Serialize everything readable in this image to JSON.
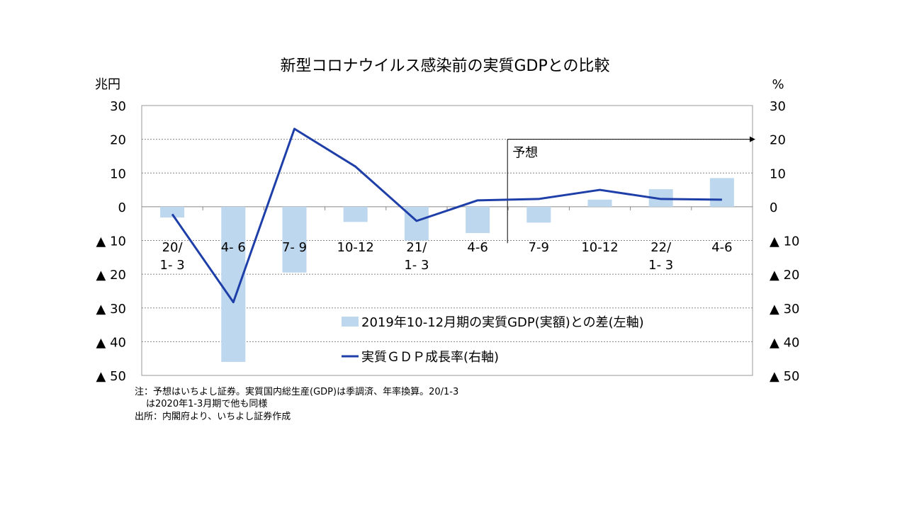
{
  "chart_data": {
    "type": "bar+line",
    "title": "新型コロナウイルス感染前の実質GDPとの比較",
    "left_unit": "兆円",
    "right_unit": "%",
    "categories": [
      [
        "20/",
        "1- 3"
      ],
      [
        "4- 6"
      ],
      [
        "7- 9"
      ],
      [
        "10-12"
      ],
      [
        "21/",
        "1- 3"
      ],
      [
        "4-6"
      ],
      [
        "7-9"
      ],
      [
        "10-12"
      ],
      [
        "22/",
        "1- 3"
      ],
      [
        "4-6"
      ]
    ],
    "ylim": [
      -50,
      30
    ],
    "y2lim": [
      -50,
      30
    ],
    "yticks": [
      {
        "v": 30,
        "label": "30"
      },
      {
        "v": 20,
        "label": "20"
      },
      {
        "v": 10,
        "label": "10"
      },
      {
        "v": 0,
        "label": "0"
      },
      {
        "v": -10,
        "label": "▲ 10"
      },
      {
        "v": -20,
        "label": "▲ 20"
      },
      {
        "v": -30,
        "label": "▲ 30"
      },
      {
        "v": -40,
        "label": "▲ 40"
      },
      {
        "v": -50,
        "label": "▲ 50"
      }
    ],
    "series": [
      {
        "name": "2019年10-12月期の実質GDP(実額)との差(左軸)",
        "type": "bar",
        "axis": "left",
        "color": "#bdd7ee",
        "values": [
          -3.2,
          -46,
          -19.5,
          -4.5,
          -10,
          -7.8,
          -4.7,
          2.1,
          5.2,
          8.5
        ]
      },
      {
        "name": "実質ＧＤＰ成長率(右軸)",
        "type": "line",
        "axis": "right",
        "color": "#1f3fa8",
        "values": [
          -2.2,
          -28.3,
          23.1,
          11.9,
          -4.2,
          1.9,
          2.3,
          5.0,
          2.3,
          2.1
        ]
      }
    ],
    "forecast_label": "予想",
    "forecast_start_index": 6,
    "grid": true,
    "legend_position": "inside-bottom-center"
  },
  "notes": [
    "注：予想はいちよし証券。実質国内総生産(GDP)は季調済、年率換算。20/1-3",
    "は2020年1-3月期で他も同様",
    "出所：内閣府より、いちよし証券作成"
  ]
}
